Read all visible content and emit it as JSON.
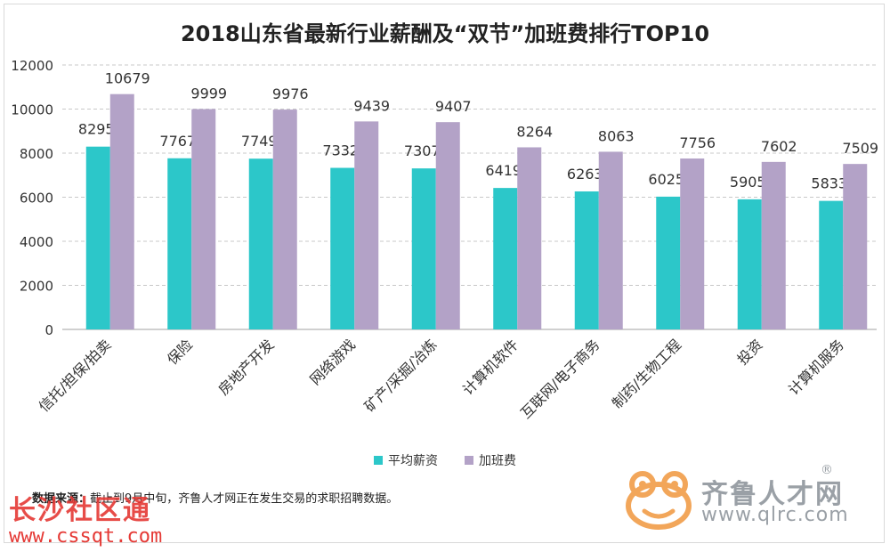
{
  "chart_data": {
    "type": "bar",
    "title": "2018山东省最新行业薪酬及“双节”加班费排行TOP10",
    "categories": [
      "信托/担保/拍卖",
      "保险",
      "房地产开发",
      "网络游戏",
      "矿产/采掘/冶炼",
      "计算机软件",
      "互联网/电子商务",
      "制药/生物工程",
      "投资",
      "计算机服务"
    ],
    "series": [
      {
        "name": "平均薪资",
        "color": "#2cc7c9",
        "values": [
          8295,
          7767,
          7749,
          7332,
          7307,
          6419,
          6263,
          6025,
          5905,
          5833
        ]
      },
      {
        "name": "加班费",
        "color": "#b3a2c7",
        "values": [
          10679,
          9999,
          9976,
          9439,
          9407,
          8264,
          8063,
          7756,
          7602,
          7509
        ]
      }
    ],
    "ylim": [
      0,
      12000
    ],
    "yticks": [
      0,
      2000,
      4000,
      6000,
      8000,
      10000,
      12000
    ],
    "grid": true,
    "legend_position": "bottom"
  },
  "source": {
    "label": "数据来源：",
    "text": "截止到9月中旬，齐鲁人才网正在发生交易的求职招聘数据。"
  },
  "watermarks": {
    "left_title": "长沙社区通",
    "left_url": "www.cssqt.com",
    "right_name": "齐鲁人才网",
    "right_url": "www.qlrc.com",
    "right_reg": "®"
  }
}
